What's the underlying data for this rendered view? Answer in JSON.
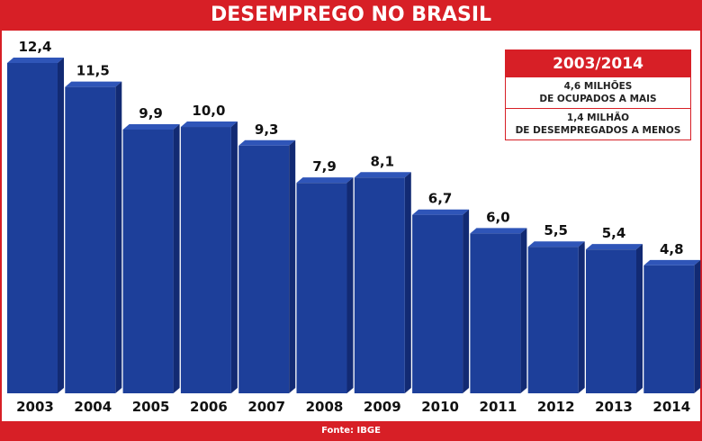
{
  "chart_data": {
    "type": "bar",
    "title": "DESEMPREGO NO BRASIL",
    "categories": [
      "2003",
      "2004",
      "2005",
      "2006",
      "2007",
      "2008",
      "2009",
      "2010",
      "2011",
      "2012",
      "2013",
      "2014"
    ],
    "values": [
      12.4,
      11.5,
      9.9,
      10.0,
      9.3,
      7.9,
      8.1,
      6.7,
      6.0,
      5.5,
      5.4,
      4.8
    ],
    "data_labels": [
      "12,4",
      "11,5",
      "9,9",
      "10,0",
      "9,3",
      "7,9",
      "8,1",
      "6,7",
      "6,0",
      "5,5",
      "5,4",
      "4,8"
    ],
    "ylim": [
      0,
      12.4
    ],
    "grid": false,
    "colors": {
      "bar_front": "#1d3f9a",
      "bar_side": "#122a73",
      "bar_top": "#2f55b8",
      "accent": "#d71f26"
    },
    "annotation_box": {
      "header": "2003/2014",
      "lines": [
        [
          "4,6 MILHÕES",
          "DE OCUPADOS A MAIS"
        ],
        [
          "1,4 MILHÃO",
          "DE DESEMPREGADOS A MENOS"
        ]
      ]
    },
    "source": "Fonte: IBGE"
  }
}
